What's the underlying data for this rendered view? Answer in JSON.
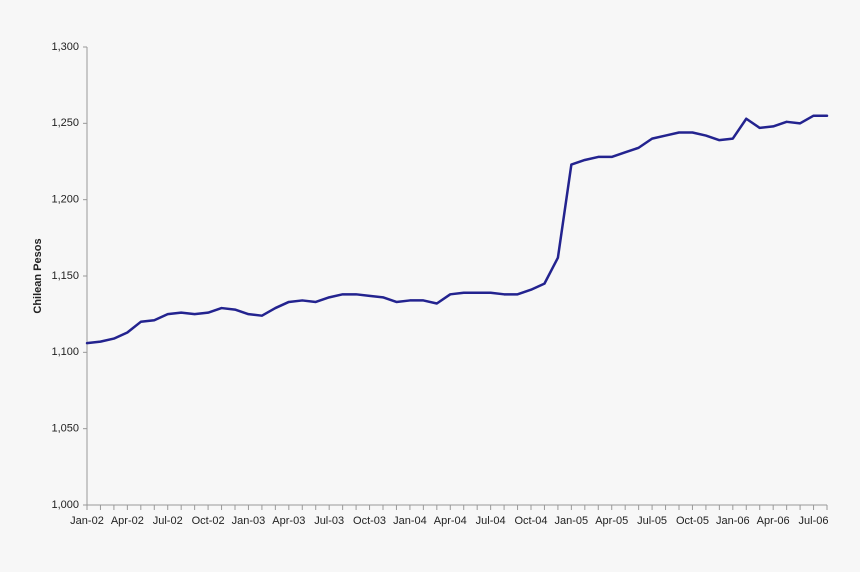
{
  "chart_data": {
    "type": "line",
    "y_label": "Chilean Pesos",
    "color": "#23238f",
    "categories": [
      "Jan-02",
      null,
      null,
      "Apr-02",
      null,
      null,
      "Jul-02",
      null,
      null,
      "Oct-02",
      null,
      null,
      "Jan-03",
      null,
      null,
      "Apr-03",
      null,
      null,
      "Jul-03",
      null,
      null,
      "Oct-03",
      null,
      null,
      "Jan-04",
      null,
      null,
      "Apr-04",
      null,
      null,
      "Jul-04",
      null,
      null,
      "Oct-04",
      null,
      null,
      "Jan-05",
      null,
      null,
      "Apr-05",
      null,
      null,
      "Jul-05",
      null,
      null,
      "Oct-05",
      null,
      null,
      "Jan-06",
      null,
      null,
      "Apr-06",
      null,
      null,
      "Jul-06",
      null
    ],
    "values": [
      1106,
      1107,
      1109,
      1113,
      1120,
      1121,
      1125,
      1126,
      1125,
      1126,
      1129,
      1128,
      1125,
      1124,
      1129,
      1133,
      1134,
      1133,
      1136,
      1138,
      1138,
      1137,
      1136,
      1133,
      1134,
      1134,
      1132,
      1138,
      1139,
      1139,
      1139,
      1138,
      1138,
      1141,
      1145,
      1162,
      1223,
      1226,
      1228,
      1228,
      1231,
      1234,
      1240,
      1242,
      1244,
      1244,
      1242,
      1239,
      1240,
      1253,
      1247,
      1248,
      1251,
      1250,
      1255,
      1255
    ],
    "ylim": [
      1000,
      1300
    ],
    "yticks": [
      {
        "value": 1000,
        "label": "1,000"
      },
      {
        "value": 1050,
        "label": "1,050"
      },
      {
        "value": 1100,
        "label": "1,100"
      },
      {
        "value": 1150,
        "label": "1,150"
      },
      {
        "value": 1200,
        "label": "1,200"
      },
      {
        "value": 1250,
        "label": "1,250"
      },
      {
        "value": 1300,
        "label": "1,300"
      }
    ],
    "grid": false
  }
}
